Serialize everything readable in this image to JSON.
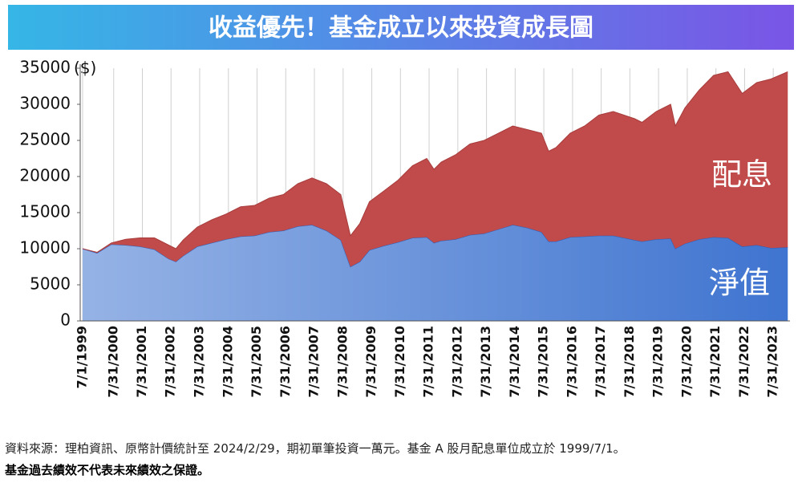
{
  "chart_data": {
    "type": "stacked-area",
    "title": "收益優先！基金成立以來投資成長圖",
    "y_label": "($)",
    "x": [
      "7/1/1999",
      "1/1/2000",
      "7/1/2000",
      "1/1/2001",
      "7/1/2001",
      "1/1/2002",
      "7/1/2002",
      "10/1/2002",
      "1/1/2003",
      "7/1/2003",
      "1/1/2004",
      "7/1/2004",
      "1/1/2005",
      "7/1/2005",
      "1/1/2006",
      "7/1/2006",
      "1/1/2007",
      "7/1/2007",
      "1/1/2008",
      "7/1/2008",
      "11/1/2008",
      "3/1/2009",
      "7/1/2009",
      "1/1/2010",
      "7/1/2010",
      "1/1/2011",
      "7/1/2011",
      "10/1/2011",
      "1/1/2012",
      "7/1/2012",
      "1/1/2013",
      "7/1/2013",
      "1/1/2014",
      "7/1/2014",
      "1/1/2015",
      "7/1/2015",
      "10/1/2015",
      "1/1/2016",
      "7/1/2016",
      "1/1/2017",
      "7/1/2017",
      "1/1/2018",
      "10/1/2018",
      "1/1/2019",
      "7/1/2019",
      "1/1/2020",
      "3/1/2020",
      "7/1/2020",
      "1/1/2021",
      "7/1/2021",
      "1/1/2022",
      "7/1/2022",
      "1/1/2023",
      "7/1/2023",
      "2/1/2024"
    ],
    "series": [
      {
        "name": "淨值",
        "color": "#3f74d0",
        "values": [
          10000,
          9400,
          10600,
          10500,
          10300,
          9900,
          8600,
          8200,
          9000,
          10300,
          10800,
          11300,
          11700,
          11800,
          12300,
          12500,
          13100,
          13300,
          12500,
          11200,
          7500,
          8200,
          9800,
          10400,
          10900,
          11500,
          11600,
          10800,
          11100,
          11300,
          11900,
          12100,
          12700,
          13300,
          12900,
          12300,
          11000,
          11000,
          11600,
          11700,
          11800,
          11800,
          11200,
          11000,
          11300,
          11400,
          10000,
          10700,
          11300,
          11600,
          11500,
          10300,
          10500,
          10100,
          10200
        ]
      },
      {
        "name": "配息",
        "color": "#c14b4b",
        "values": [
          0,
          100,
          200,
          800,
          1200,
          1600,
          1900,
          1800,
          2200,
          2700,
          3200,
          3500,
          4100,
          4200,
          4700,
          5000,
          5900,
          6500,
          6500,
          6300,
          4300,
          5300,
          6700,
          7600,
          8600,
          10000,
          10900,
          10200,
          10900,
          11700,
          12600,
          12900,
          13300,
          13700,
          13600,
          13700,
          12500,
          13000,
          14400,
          15300,
          16700,
          17200,
          16800,
          16500,
          17700,
          18600,
          17000,
          18800,
          20700,
          22400,
          23000,
          21200,
          22500,
          23400,
          24300
        ]
      }
    ],
    "xlim": [
      "7/1/1999",
      "2/29/2024"
    ],
    "xticks": [
      "7/1/1999",
      "7/31/2000",
      "7/31/2001",
      "7/31/2002",
      "7/31/2003",
      "7/31/2004",
      "7/31/2005",
      "7/31/2006",
      "7/31/2007",
      "7/31/2008",
      "7/31/2009",
      "7/31/2010",
      "7/31/2011",
      "7/31/2012",
      "7/31/2013",
      "7/31/2014",
      "7/31/2015",
      "7/31/2016",
      "7/31/2017",
      "7/31/2018",
      "7/31/2019",
      "7/31/2020",
      "7/31/2021",
      "7/31/2022",
      "7/31/2023"
    ],
    "ylim": [
      0,
      35000
    ],
    "yticks": [
      0,
      5000,
      10000,
      15000,
      20000,
      25000,
      30000,
      35000
    ],
    "grid": "x",
    "notes": [
      "資料來源：理柏資訊、原幣計價統計至 2024/2/29，期初單筆投資一萬元。基金 A 股月配息單位成立於 1999/7/1。",
      "基金過去績效不代表未來績效之保證。"
    ]
  }
}
